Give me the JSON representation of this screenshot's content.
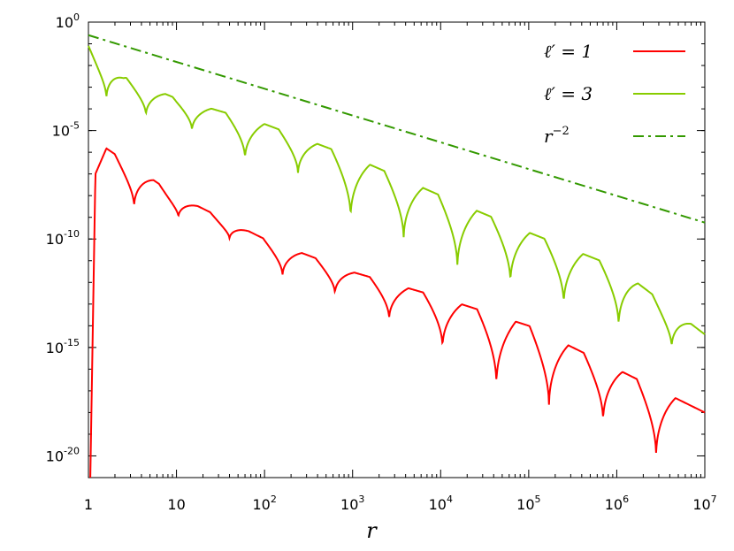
{
  "chart_data": {
    "type": "line",
    "title": "",
    "xlabel": "r",
    "ylabel": "",
    "xscale": "log10",
    "yscale": "log10",
    "xlim": [
      1,
      10000000
    ],
    "ylim": [
      1e-21,
      1
    ],
    "x_ticks": [
      {
        "base": "1",
        "exp": ""
      },
      {
        "base": "10",
        "exp": ""
      },
      {
        "base": "10",
        "exp": "2"
      },
      {
        "base": "10",
        "exp": "3"
      },
      {
        "base": "10",
        "exp": "4"
      },
      {
        "base": "10",
        "exp": "5"
      },
      {
        "base": "10",
        "exp": "6"
      },
      {
        "base": "10",
        "exp": "7"
      }
    ],
    "y_ticks": [
      {
        "base": "10",
        "exp": "0"
      },
      {
        "base": "10",
        "exp": "-5"
      },
      {
        "base": "10",
        "exp": "-10"
      },
      {
        "base": "10",
        "exp": "-15"
      },
      {
        "base": "10",
        "exp": "-20"
      }
    ],
    "legend_position": "top-right",
    "series": [
      {
        "name": "ℓ′ = 1",
        "legend_text": "ℓ′ = 1",
        "color": "#ff0000",
        "dash": "solid",
        "envelope": [
          [
            1.05,
            1e-21
          ],
          [
            1.2,
            1e-07
          ],
          [
            1.6,
            1.5e-06
          ],
          [
            10,
            1e-08
          ],
          [
            100,
            1e-10
          ],
          [
            1000,
            3e-12
          ],
          [
            10000,
            2e-13
          ],
          [
            100000,
            1e-14
          ],
          [
            1000000,
            1e-16
          ],
          [
            10000000,
            1e-18
          ]
        ],
        "minima": [
          [
            3.3,
            3e-09
          ],
          [
            10.5,
            1e-09
          ],
          [
            40,
            1e-10
          ],
          [
            160,
            2e-12
          ],
          [
            630,
            3e-13
          ],
          [
            2600,
            2e-14
          ],
          [
            10500,
            1e-15
          ],
          [
            43000,
            2e-17
          ],
          [
            170000,
            2e-18
          ],
          [
            700000,
            4e-19
          ],
          [
            2800000,
            1e-20
          ]
        ]
      },
      {
        "name": "ℓ′ = 3",
        "legend_text": "ℓ′ = 3",
        "color": "#88cc00",
        "dash": "solid",
        "envelope": [
          [
            1,
            0.1
          ],
          [
            2.5,
            0.003
          ],
          [
            10,
            0.0003
          ],
          [
            100,
            2e-05
          ],
          [
            1000,
            6e-07
          ],
          [
            10000,
            1e-08
          ],
          [
            100000,
            2e-10
          ],
          [
            1000000,
            5e-12
          ],
          [
            10000000,
            4e-15
          ]
        ],
        "minima": [
          [
            1.6,
            0.0003
          ],
          [
            4.5,
            5e-05
          ],
          [
            15,
            1e-05
          ],
          [
            60,
            5e-07
          ],
          [
            240,
            1e-07
          ],
          [
            950,
            1e-09
          ],
          [
            3800,
            1e-10
          ],
          [
            15500,
            5e-12
          ],
          [
            62000,
            1e-12
          ],
          [
            250000,
            1e-13
          ],
          [
            1050000,
            1e-14
          ],
          [
            4200000,
            1e-15
          ]
        ]
      },
      {
        "name": "r⁻²",
        "legend_text": "r",
        "legend_sup": "−2",
        "color": "#339900",
        "dash": "dash-dot",
        "reference": {
          "a": 0.25,
          "exp": -2
        }
      }
    ]
  }
}
